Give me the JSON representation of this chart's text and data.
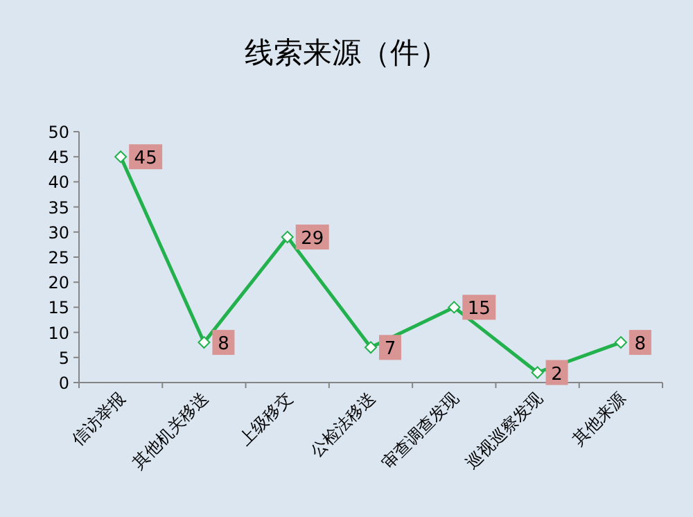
{
  "chart_data": {
    "type": "line",
    "title": "线索来源（件）",
    "categories": [
      "信访举报",
      "其他机关移送",
      "上级移交",
      "公检法移送",
      "审查调查发现",
      "巡视巡察发现",
      "其他来源"
    ],
    "series": [
      {
        "color": "#22b14c",
        "values": [
          45,
          8,
          29,
          7,
          15,
          2,
          8
        ]
      }
    ],
    "ylim": [
      0,
      50
    ],
    "yticks": [
      0,
      5,
      10,
      15,
      20,
      25,
      30,
      35,
      40,
      45,
      50
    ],
    "grid": false,
    "marker": "diamond",
    "line_style": "solid",
    "data_labels": true
  }
}
